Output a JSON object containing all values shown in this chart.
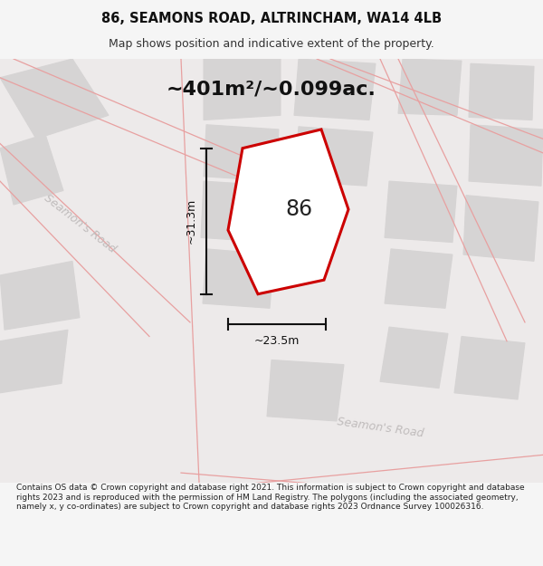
{
  "title": "86, SEAMONS ROAD, ALTRINCHAM, WA14 4LB",
  "subtitle": "Map shows position and indicative extent of the property.",
  "area_text": "~401m²/~0.099ac.",
  "label_86": "86",
  "dim_height": "~31.3m",
  "dim_width": "~23.5m",
  "road_label_left": "Seamon's Road",
  "road_label_bottom": "Seamon's Road",
  "footer": "Contains OS data © Crown copyright and database right 2021. This information is subject to Crown copyright and database rights 2023 and is reproduced with the permission of HM Land Registry. The polygons (including the associated geometry, namely x, y co-ordinates) are subject to Crown copyright and database rights 2023 Ordnance Survey 100026316.",
  "bg_color": "#f5f5f5",
  "map_bg": "#edeaea",
  "plot_fill": "#ffffff",
  "plot_edge": "#cc0000",
  "building_fill": "#d6d4d4",
  "building_edge": "#d6d4d4",
  "road_line_color": "#e8a0a0",
  "dim_line_color": "#111111",
  "road_text_color": "#c0bcbc",
  "footer_fontsize": 6.5,
  "title_fontsize": 10.5,
  "subtitle_fontsize": 9
}
